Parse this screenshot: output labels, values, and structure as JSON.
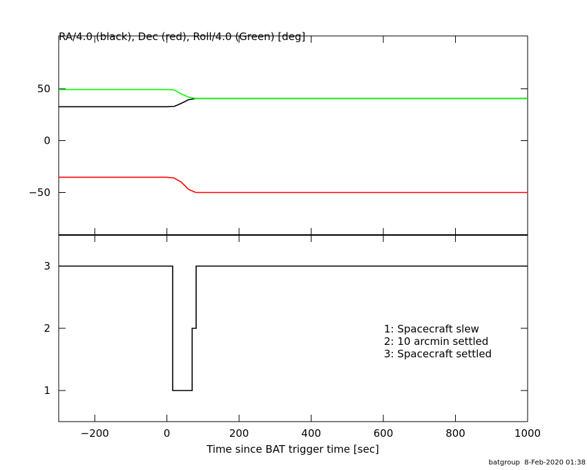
{
  "chart_data": [
    {
      "type": "line",
      "title": "RA/4.0 (black), Dec (red), Roll/4.0 (Green) [deg]",
      "x": [
        -300,
        0,
        20,
        40,
        60,
        80,
        1000
      ],
      "series": [
        {
          "color": "#000000",
          "values": [
            32.7,
            32.7,
            33,
            36,
            39.5,
            40.7,
            40.7
          ]
        },
        {
          "color": "#ff0000",
          "values": [
            -35.3,
            -35.3,
            -36,
            -40,
            -47,
            -50,
            -50
          ]
        },
        {
          "color": "#00ff00",
          "values": [
            49.3,
            49.3,
            49,
            45,
            42,
            40.7,
            40.7
          ]
        }
      ],
      "xlim": [
        -300,
        1000
      ],
      "ylim": [
        -91,
        101
      ],
      "yticks": [
        {
          "value": -50,
          "label": "−50"
        },
        0,
        50
      ]
    },
    {
      "type": "line",
      "xlabel": "Time since BAT trigger time [sec]",
      "x": [
        -300,
        16,
        16,
        70,
        70,
        81,
        81,
        1000
      ],
      "series": [
        {
          "color": "#000000",
          "values": [
            3,
            3,
            1,
            1,
            2,
            2,
            3,
            3
          ]
        }
      ],
      "xlim": [
        -300,
        1000
      ],
      "ylim": [
        0.5,
        3.5
      ],
      "xticks": [
        {
          "value": -200,
          "label": "−200"
        },
        0,
        200,
        400,
        600,
        800,
        1000
      ],
      "yticks": [
        1,
        2,
        3
      ],
      "annotations": [
        "1: Spacecraft slew",
        "2: 10 arcmin settled",
        "3: Spacecraft settled"
      ]
    }
  ],
  "footer": "batgroup  8-Feb-2020 01:38"
}
